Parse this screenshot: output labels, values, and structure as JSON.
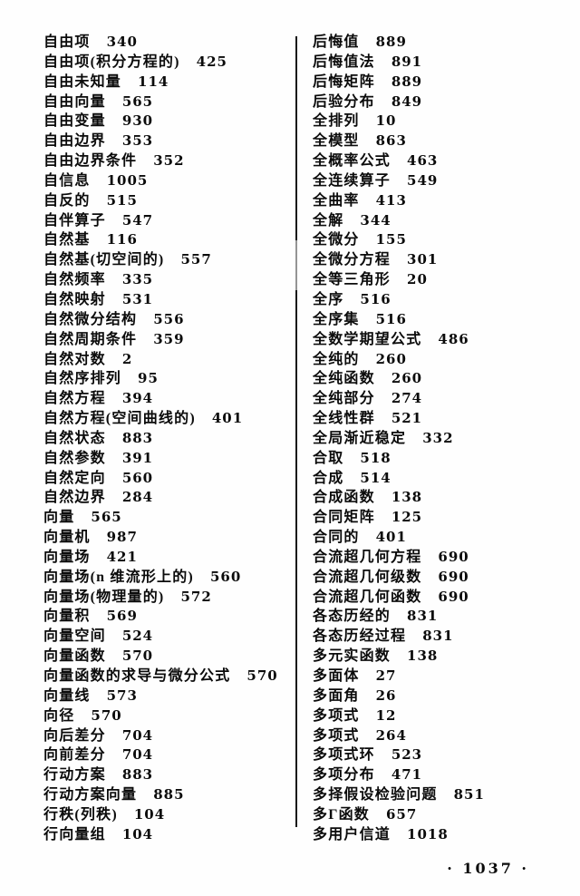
{
  "footer": {
    "page_number": "1037",
    "display": "· 1037 ·"
  },
  "columns": {
    "left": {
      "entries": [
        {
          "term": "自由项",
          "page": "340"
        },
        {
          "term": "自由项(积分方程的)",
          "page": "425"
        },
        {
          "term": "自由未知量",
          "page": "114"
        },
        {
          "term": "自由向量",
          "page": "565"
        },
        {
          "term": "自由变量",
          "page": "930"
        },
        {
          "term": "自由边界",
          "page": "353"
        },
        {
          "term": "自由边界条件",
          "page": "352"
        },
        {
          "term": "自信息",
          "page": "1005"
        },
        {
          "term": "自反的",
          "page": "515"
        },
        {
          "term": "自伴算子",
          "page": "547"
        },
        {
          "term": "自然基",
          "page": "116"
        },
        {
          "term": "自然基(切空间的)",
          "page": "557"
        },
        {
          "term": "自然频率",
          "page": "335"
        },
        {
          "term": "自然映射",
          "page": "531"
        },
        {
          "term": "自然微分结构",
          "page": "556"
        },
        {
          "term": "自然周期条件",
          "page": "359"
        },
        {
          "term": "自然对数",
          "page": "2"
        },
        {
          "term": "自然序排列",
          "page": "95"
        },
        {
          "term": "自然方程",
          "page": "394"
        },
        {
          "term": "自然方程(空间曲线的)",
          "page": "401"
        },
        {
          "term": "自然状态",
          "page": "883"
        },
        {
          "term": "自然参数",
          "page": "391"
        },
        {
          "term": "自然定向",
          "page": "560"
        },
        {
          "term": "自然边界",
          "page": "284"
        },
        {
          "term": "向量",
          "page": "565"
        },
        {
          "term": "向量机",
          "page": "987"
        },
        {
          "term": "向量场",
          "page": "421"
        },
        {
          "term": "向量场(n 维流形上的)",
          "page": "560"
        },
        {
          "term": "向量场(物理量的)",
          "page": "572"
        },
        {
          "term": "向量积",
          "page": "569"
        },
        {
          "term": "向量空间",
          "page": "524"
        },
        {
          "term": "向量函数",
          "page": "570"
        },
        {
          "term": "向量函数的求导与微分公式",
          "page": "570"
        },
        {
          "term": "向量线",
          "page": "573"
        },
        {
          "term": "向径",
          "page": "570"
        },
        {
          "term": "向后差分",
          "page": "704"
        },
        {
          "term": "向前差分",
          "page": "704"
        },
        {
          "term": "行动方案",
          "page": "883"
        },
        {
          "term": "行动方案向量",
          "page": "885"
        },
        {
          "term": "行秩(列秩)",
          "page": "104"
        },
        {
          "term": "行向量组",
          "page": "104"
        }
      ]
    },
    "right": {
      "entries": [
        {
          "term": "后悔值",
          "page": "889"
        },
        {
          "term": "后悔值法",
          "page": "891"
        },
        {
          "term": "后悔矩阵",
          "page": "889"
        },
        {
          "term": "后验分布",
          "page": "849"
        },
        {
          "term": "全排列",
          "page": "10"
        },
        {
          "term": "全模型",
          "page": "863"
        },
        {
          "term": "全概率公式",
          "page": "463"
        },
        {
          "term": "全连续算子",
          "page": "549"
        },
        {
          "term": "全曲率",
          "page": "413"
        },
        {
          "term": "全解",
          "page": "344"
        },
        {
          "term": "全微分",
          "page": "155"
        },
        {
          "term": "全微分方程",
          "page": "301"
        },
        {
          "term": "全等三角形",
          "page": "20"
        },
        {
          "term": "全序",
          "page": "516"
        },
        {
          "term": "全序集",
          "page": "516"
        },
        {
          "term": "全数学期望公式",
          "page": "486"
        },
        {
          "term": "全纯的",
          "page": "260"
        },
        {
          "term": "全纯函数",
          "page": "260"
        },
        {
          "term": "全纯部分",
          "page": "274"
        },
        {
          "term": "全线性群",
          "page": "521"
        },
        {
          "term": "全局渐近稳定",
          "page": "332"
        },
        {
          "term": "合取",
          "page": "518"
        },
        {
          "term": "合成",
          "page": "514"
        },
        {
          "term": "合成函数",
          "page": "138"
        },
        {
          "term": "合同矩阵",
          "page": "125"
        },
        {
          "term": "合同的",
          "page": "401"
        },
        {
          "term": "合流超几何方程",
          "page": "690"
        },
        {
          "term": "合流超几何级数",
          "page": "690"
        },
        {
          "term": "合流超几何函数",
          "page": "690"
        },
        {
          "term": "各态历经的",
          "page": "831"
        },
        {
          "term": "各态历经过程",
          "page": "831"
        },
        {
          "term": "多元实函数",
          "page": "138"
        },
        {
          "term": "多面体",
          "page": "27"
        },
        {
          "term": "多面角",
          "page": "26"
        },
        {
          "term": "多项式",
          "page": "12"
        },
        {
          "term": "多项式",
          "page": "264"
        },
        {
          "term": "多项式环",
          "page": "523"
        },
        {
          "term": "多项分布",
          "page": "471"
        },
        {
          "term": "多择假设检验问题",
          "page": "851"
        },
        {
          "term": "多Γ函数",
          "page": "657"
        },
        {
          "term": "多用户信道",
          "page": "1018"
        }
      ]
    }
  }
}
